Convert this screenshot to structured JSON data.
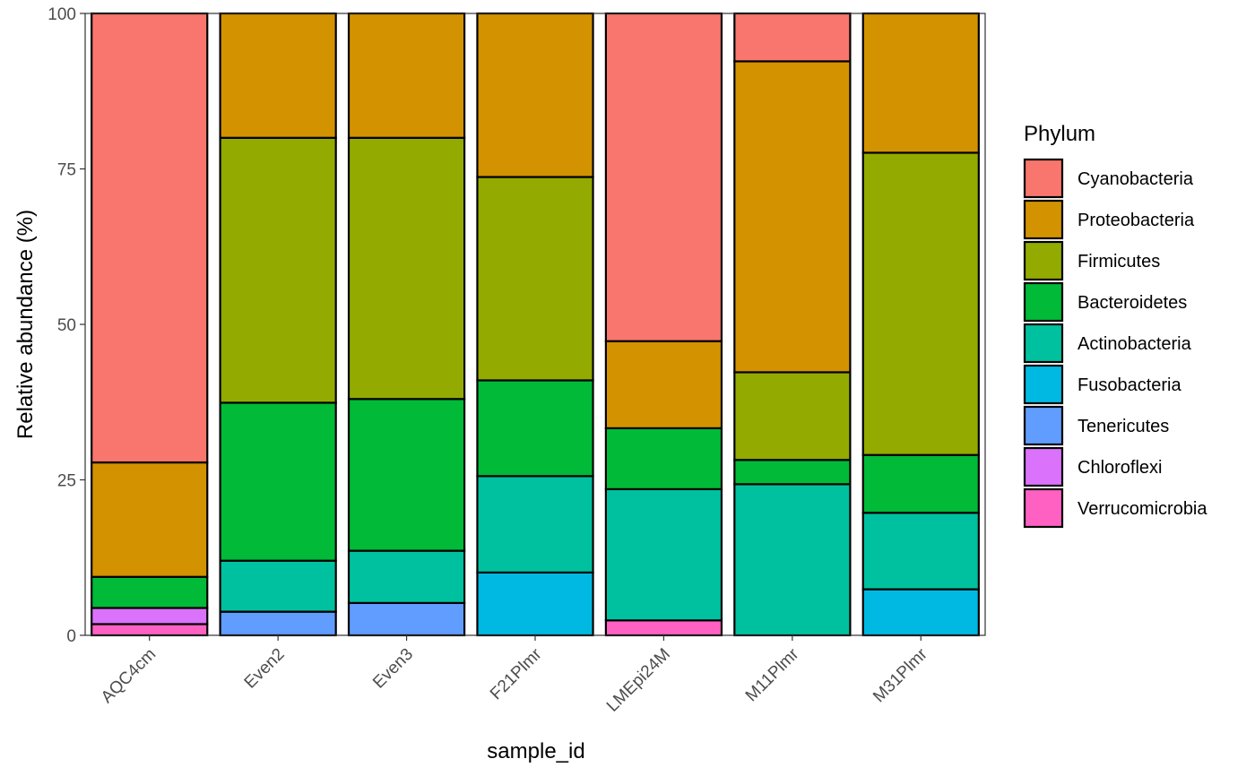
{
  "chart_data": {
    "type": "bar",
    "stacked": true,
    "categories": [
      "AQC4cm",
      "Even2",
      "Even3",
      "F21Plmr",
      "LMEpi24M",
      "M11Plmr",
      "M31Plmr"
    ],
    "series": [
      {
        "name": "Verrucomicrobia",
        "color": "#FF61C3",
        "values": [
          1.8,
          0,
          0,
          0,
          2.4,
          0,
          0
        ]
      },
      {
        "name": "Chloroflexi",
        "color": "#DB72FB",
        "values": [
          2.6,
          0,
          0,
          0,
          0,
          0,
          0
        ]
      },
      {
        "name": "Tenericutes",
        "color": "#619CFF",
        "values": [
          0,
          3.8,
          5.2,
          0,
          0,
          0,
          0
        ]
      },
      {
        "name": "Fusobacteria",
        "color": "#00B9E3",
        "values": [
          0,
          0,
          0,
          10.1,
          0,
          0,
          7.4
        ]
      },
      {
        "name": "Actinobacteria",
        "color": "#00C19F",
        "values": [
          0,
          8.2,
          8.4,
          15.5,
          21.1,
          24.3,
          12.3
        ]
      },
      {
        "name": "Bacteroidetes",
        "color": "#00BA38",
        "values": [
          5.0,
          25.4,
          24.4,
          15.4,
          9.8,
          3.9,
          9.3
        ]
      },
      {
        "name": "Firmicutes",
        "color": "#93AA00",
        "values": [
          0,
          42.6,
          42.0,
          32.7,
          0,
          14.1,
          48.6
        ]
      },
      {
        "name": "Proteobacteria",
        "color": "#D39200",
        "values": [
          18.4,
          20.0,
          20.0,
          26.3,
          14.0,
          50.0,
          22.4
        ]
      },
      {
        "name": "Cyanobacteria",
        "color": "#F8766D",
        "values": [
          72.2,
          0,
          0,
          0,
          52.7,
          7.7,
          0
        ]
      }
    ],
    "xlabel": "sample_id",
    "ylabel": "Relative abundance (%)",
    "ylim": [
      0,
      100
    ],
    "yticks": [
      0,
      25,
      50,
      75,
      100
    ],
    "legend": {
      "title": "Phylum",
      "placement": "right",
      "entries": [
        "Cyanobacteria",
        "Proteobacteria",
        "Firmicutes",
        "Bacteroidetes",
        "Actinobacteria",
        "Fusobacteria",
        "Tenericutes",
        "Chloroflexi",
        "Verrucomicrobia"
      ]
    },
    "grid": false
  }
}
